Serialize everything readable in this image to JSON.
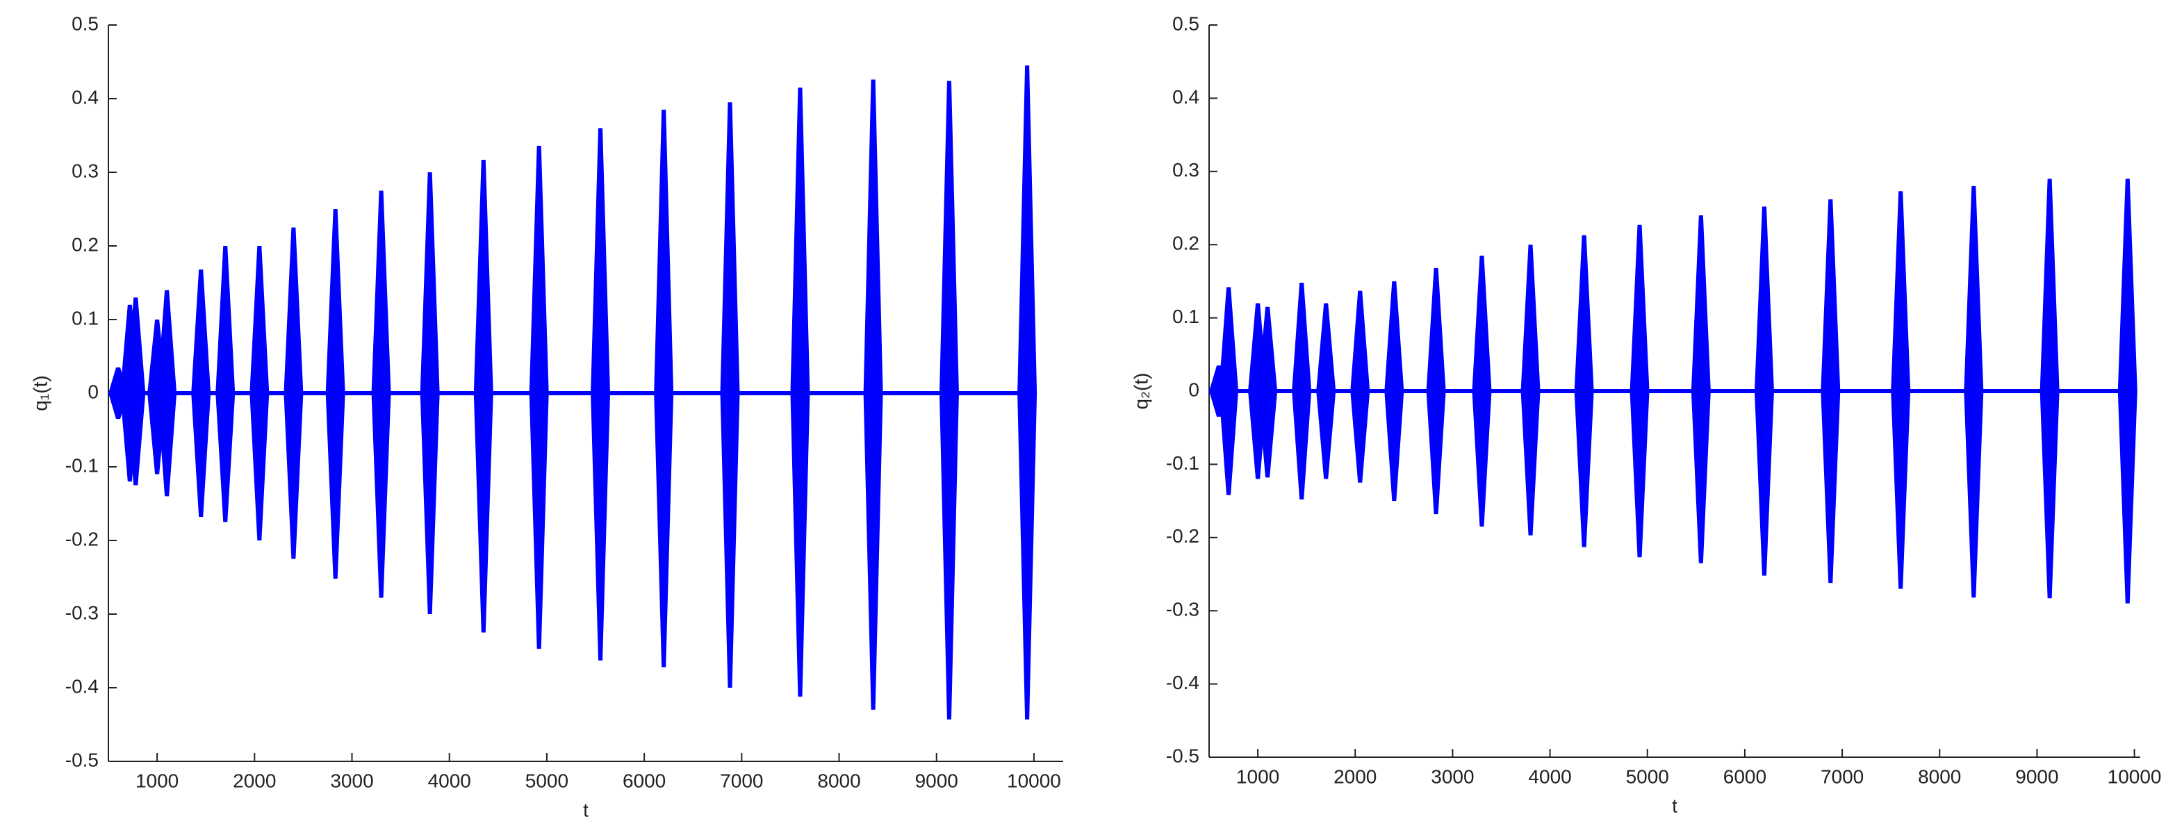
{
  "chart_data": [
    {
      "type": "burst",
      "xlabel": "t",
      "ylabel": "q₁(t)",
      "color": "#0000ff",
      "xlim": [
        500,
        10300
      ],
      "ylim": [
        -0.5,
        0.5
      ],
      "xticks": [
        1000,
        2000,
        3000,
        4000,
        5000,
        6000,
        7000,
        8000,
        9000,
        10000
      ],
      "yticks": [
        -0.5,
        -0.4,
        -0.3,
        -0.2,
        -0.1,
        0,
        0.1,
        0.2,
        0.3,
        0.4,
        0.5
      ],
      "x": [
        600,
        720,
        780,
        1000,
        1100,
        1450,
        1700,
        2050,
        2400,
        2830,
        3300,
        3800,
        4350,
        4920,
        5550,
        6200,
        6880,
        7600,
        8350,
        9130,
        9930
      ],
      "upper": [
        0.035,
        0.12,
        0.13,
        0.1,
        0.14,
        0.168,
        0.2,
        0.2,
        0.225,
        0.25,
        0.275,
        0.3,
        0.317,
        0.336,
        0.36,
        0.385,
        0.395,
        0.415,
        0.426,
        0.424,
        0.445
      ],
      "lower": [
        -0.035,
        -0.12,
        -0.125,
        -0.11,
        -0.14,
        -0.168,
        -0.175,
        -0.2,
        -0.225,
        -0.252,
        -0.278,
        -0.3,
        -0.325,
        -0.347,
        -0.363,
        -0.372,
        -0.4,
        -0.412,
        -0.43,
        -0.443,
        -0.443
      ]
    },
    {
      "type": "burst",
      "xlabel": "t",
      "ylabel": "q₂(t)",
      "color": "#0000ff",
      "xlim": [
        500,
        10060
      ],
      "ylim": [
        -0.5,
        0.5
      ],
      "xticks": [
        1000,
        2000,
        3000,
        4000,
        5000,
        6000,
        7000,
        8000,
        9000,
        10000
      ],
      "yticks": [
        -0.5,
        -0.4,
        -0.3,
        -0.2,
        -0.1,
        0,
        0.1,
        0.2,
        0.3,
        0.4,
        0.5
      ],
      "x": [
        600,
        700,
        1000,
        1100,
        1450,
        1700,
        2050,
        2400,
        2830,
        3300,
        3800,
        4350,
        4920,
        5550,
        6200,
        6880,
        7600,
        8350,
        9130,
        9930
      ],
      "upper": [
        0.035,
        0.142,
        0.12,
        0.115,
        0.148,
        0.12,
        0.137,
        0.15,
        0.168,
        0.185,
        0.2,
        0.213,
        0.227,
        0.24,
        0.252,
        0.262,
        0.273,
        0.28,
        0.29,
        0.29
      ],
      "lower": [
        -0.035,
        -0.142,
        -0.12,
        -0.118,
        -0.148,
        -0.12,
        -0.125,
        -0.15,
        -0.168,
        -0.185,
        -0.197,
        -0.213,
        -0.227,
        -0.235,
        -0.252,
        -0.262,
        -0.27,
        -0.282,
        -0.283,
        -0.29
      ]
    }
  ]
}
